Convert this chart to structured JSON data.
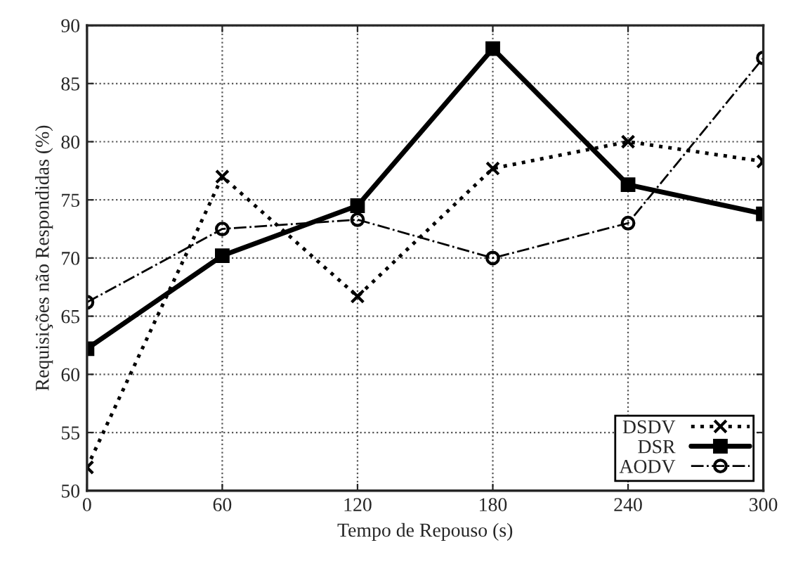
{
  "chart_data": {
    "type": "line",
    "xlabel": "Tempo de Repouso (s)",
    "ylabel": "Requisições não Respondidas (%)",
    "x": [
      0,
      60,
      120,
      180,
      240,
      300
    ],
    "series": [
      {
        "name": "DSDV",
        "color": "#000000",
        "values": [
          52,
          77,
          66.7,
          77.7,
          80,
          78.3
        ],
        "marker": "cross",
        "line_style": "dotted"
      },
      {
        "name": "DSR",
        "color": "#000000",
        "values": [
          62.2,
          70.2,
          74.5,
          88,
          76.3,
          73.8
        ],
        "marker": "square",
        "line_style": "solid"
      },
      {
        "name": "AODV",
        "color": "#000000",
        "values": [
          66.2,
          72.5,
          73.3,
          70,
          73,
          87.2
        ],
        "marker": "circle",
        "line_style": "dashdot"
      }
    ],
    "xlim": [
      0,
      300
    ],
    "xticks": [
      0,
      60,
      120,
      180,
      240,
      300
    ],
    "ylim": [
      50,
      90
    ],
    "yticks": [
      50,
      55,
      60,
      65,
      70,
      75,
      80,
      85,
      90
    ],
    "grid": true,
    "legend": "bottom right"
  }
}
